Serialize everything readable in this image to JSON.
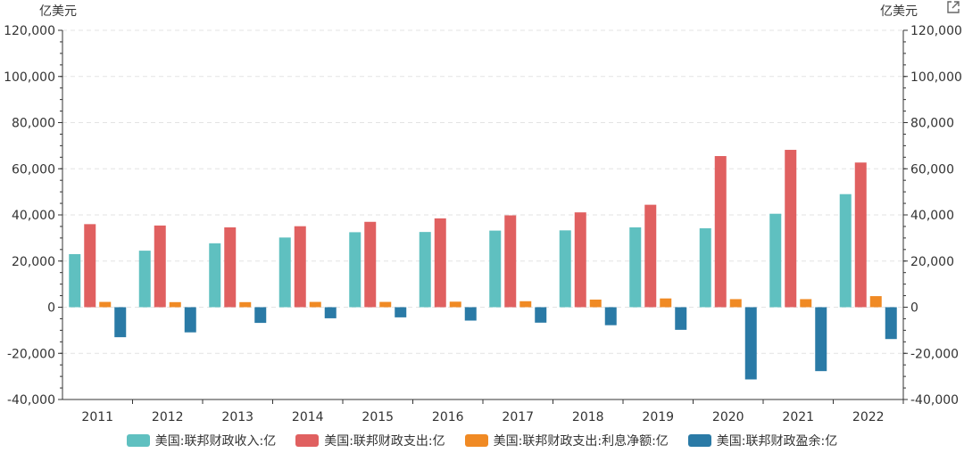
{
  "units": {
    "left": "亿美元",
    "right": "亿美元"
  },
  "colors": {
    "income": "#5fc0c0",
    "spending": "#e06060",
    "interest": "#f08a24",
    "surplus": "#2a7aa6"
  },
  "chart_data": {
    "type": "bar",
    "categories": [
      "2011",
      "2012",
      "2013",
      "2014",
      "2015",
      "2016",
      "2017",
      "2018",
      "2019",
      "2020",
      "2021",
      "2022"
    ],
    "ylim": [
      -40000,
      120000
    ],
    "yticks": [
      -40000,
      -20000,
      0,
      20000,
      40000,
      60000,
      80000,
      100000,
      120000
    ],
    "ytick_labels": [
      "-40,000",
      "-20,000",
      "0",
      "20,000",
      "40,000",
      "60,000",
      "80,000",
      "100,000",
      "120,000"
    ],
    "grid": true,
    "legend_position": "bottom",
    "series": [
      {
        "name": "美国:联邦财政收入:亿",
        "color_key": "income",
        "values": [
          23000,
          24500,
          27700,
          30200,
          32500,
          32600,
          33200,
          33300,
          34600,
          34200,
          40500,
          49000
        ]
      },
      {
        "name": "美国:联邦财政支出:亿",
        "color_key": "spending",
        "values": [
          36000,
          35400,
          34600,
          35100,
          37000,
          38500,
          39800,
          41100,
          44400,
          65500,
          68200,
          62700
        ]
      },
      {
        "name": "美国:联邦财政支出:利息净额:亿",
        "color_key": "interest",
        "values": [
          2300,
          2200,
          2200,
          2300,
          2300,
          2400,
          2600,
          3300,
          3800,
          3500,
          3500,
          4800
        ]
      },
      {
        "name": "美国:联邦财政盈余:亿",
        "color_key": "surplus",
        "values": [
          -13000,
          -10900,
          -6800,
          -4800,
          -4400,
          -5800,
          -6700,
          -7800,
          -9800,
          -31300,
          -27700,
          -13800
        ]
      }
    ]
  }
}
